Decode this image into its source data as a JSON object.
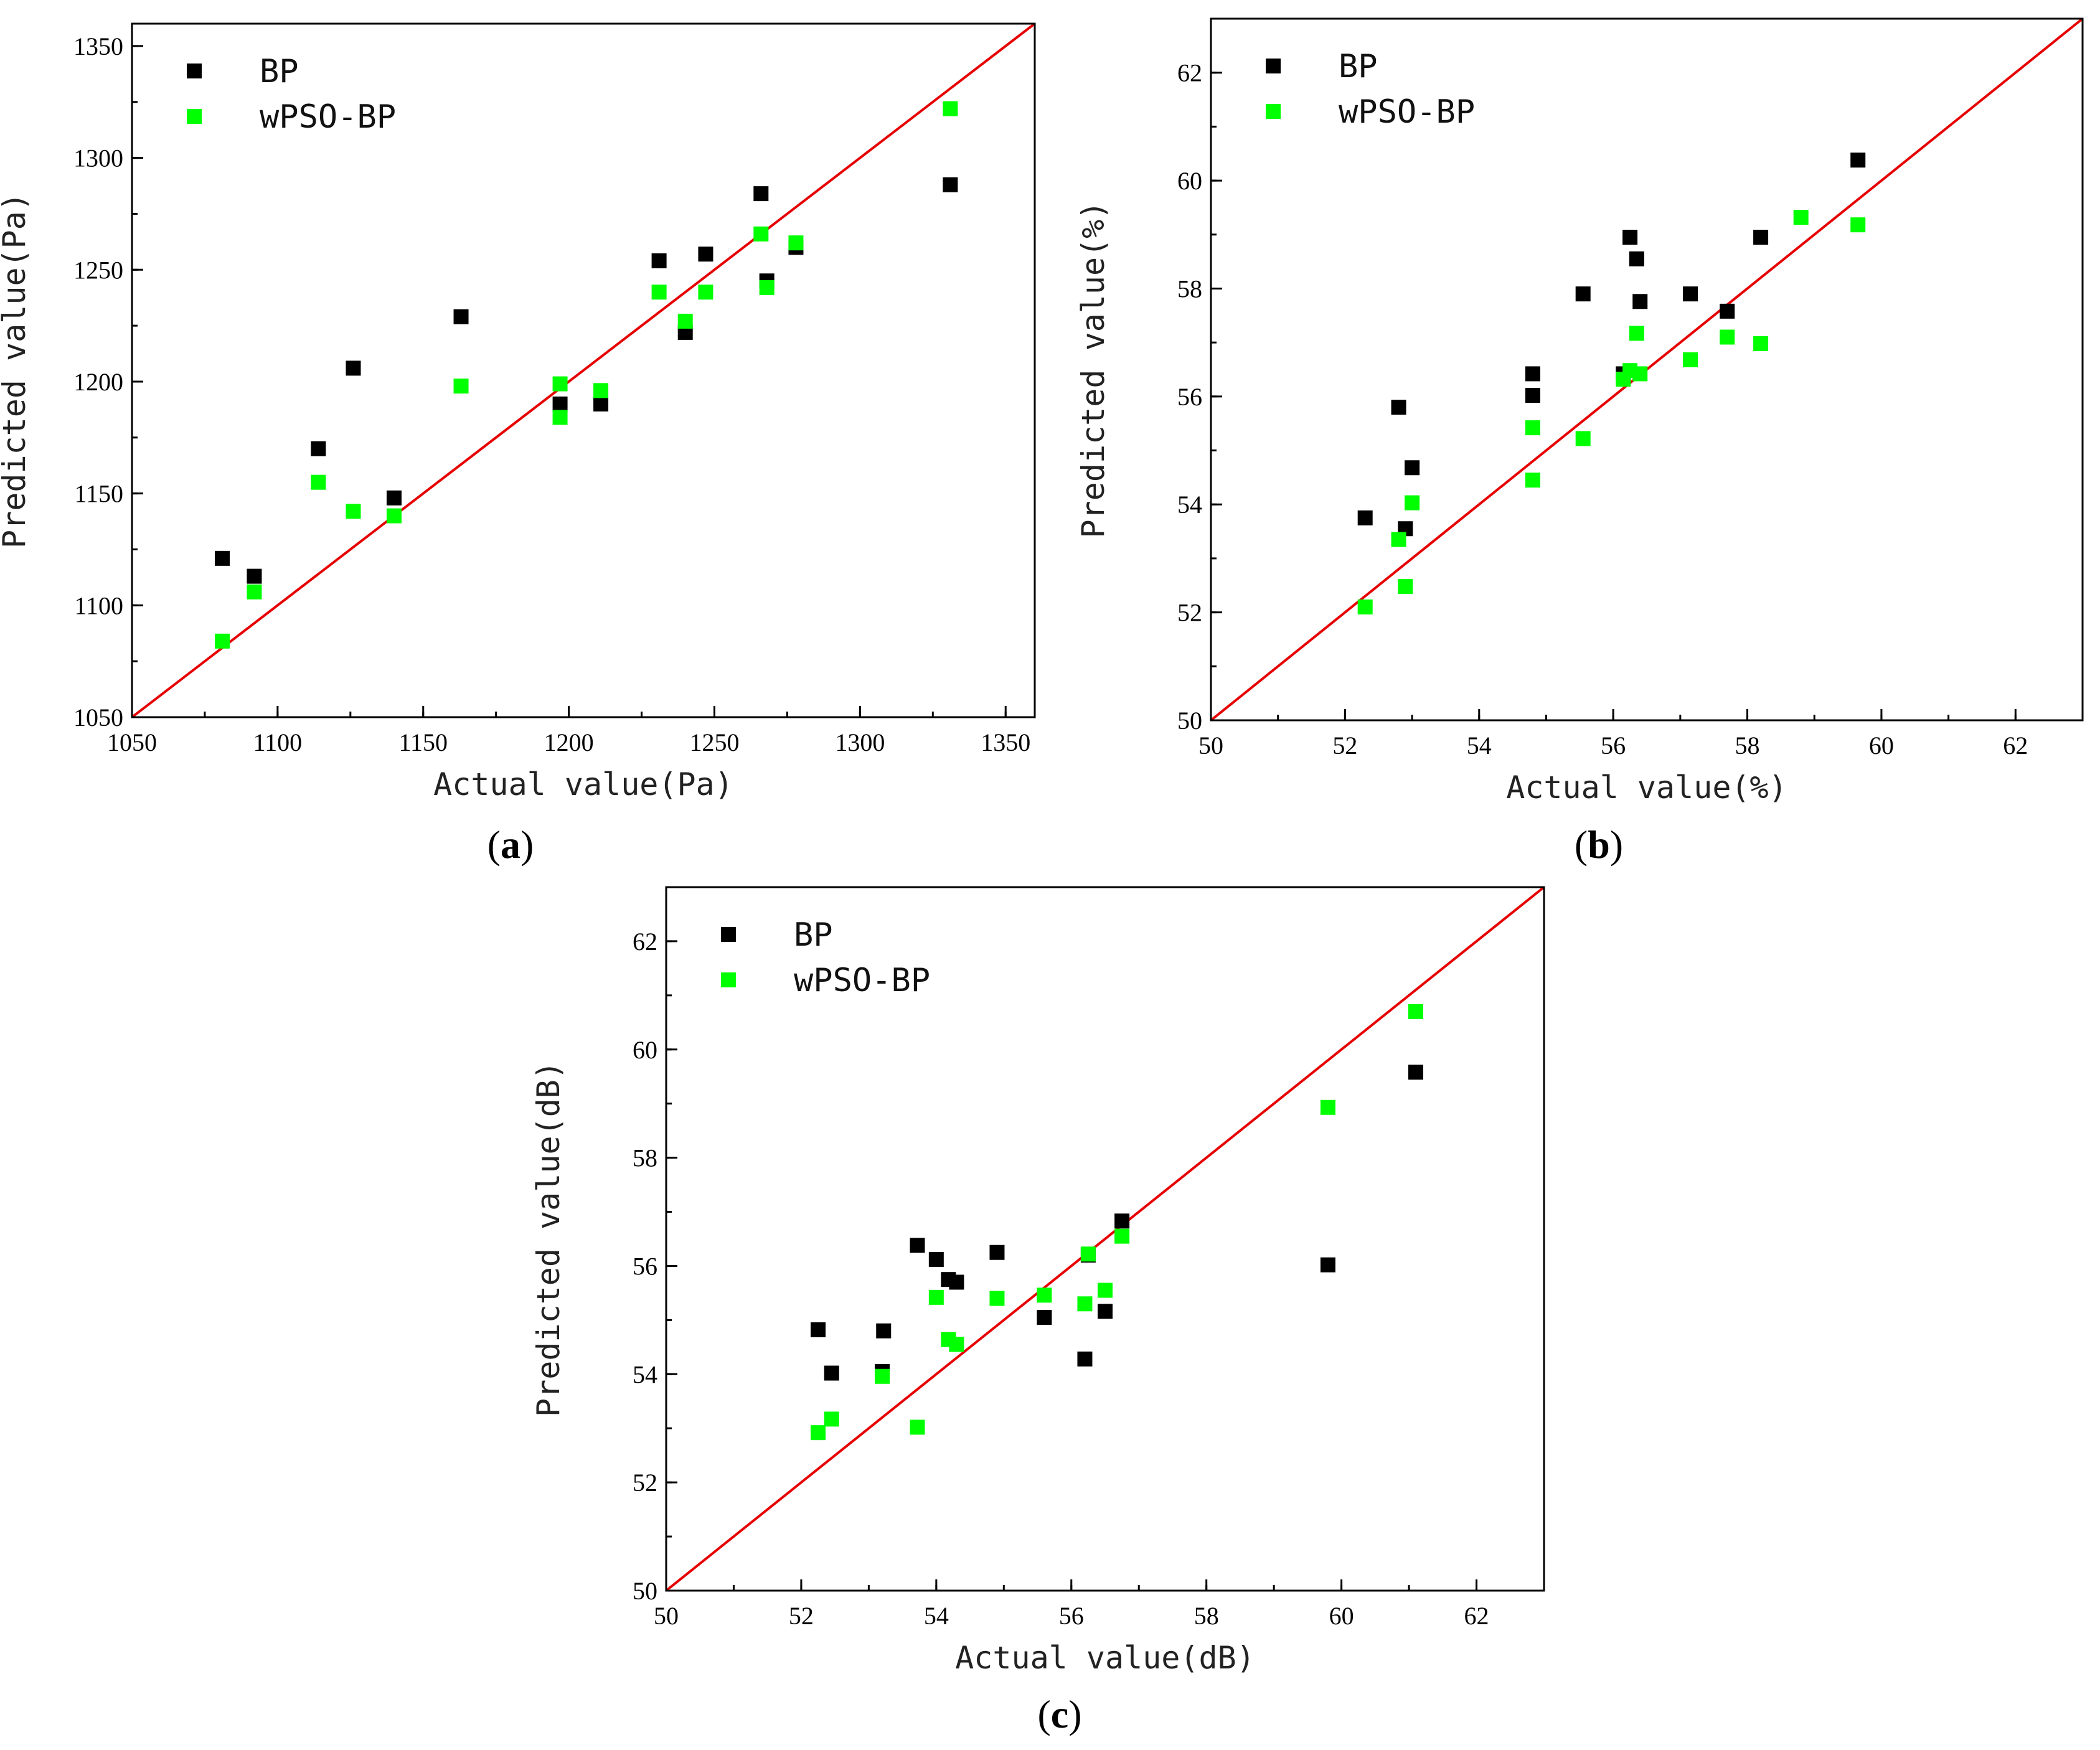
{
  "figure": {
    "colors": {
      "series_bp": "#000000",
      "series_wpso": "#00ff00",
      "reference_line": "#e60000",
      "frame": "#000000"
    }
  },
  "chart_data": [
    {
      "panel": "a",
      "label": "a",
      "type": "scatter",
      "xlabel": "Actual value(Pa)",
      "ylabel": "Predicted value(Pa)",
      "xlim": [
        1050,
        1360
      ],
      "ylim": [
        1050,
        1360
      ],
      "xticks": [
        1050,
        1100,
        1150,
        1200,
        1250,
        1300,
        1350
      ],
      "yticks": [
        1050,
        1100,
        1150,
        1200,
        1250,
        1300,
        1350
      ],
      "minor_step": 25,
      "reference_line": "y = x",
      "legend_position": "top-left",
      "series": [
        {
          "name": "BP",
          "points": [
            [
              1081,
              1121
            ],
            [
              1092,
              1113
            ],
            [
              1114,
              1170
            ],
            [
              1126,
              1206
            ],
            [
              1140,
              1148
            ],
            [
              1163,
              1229
            ],
            [
              1197,
              1190
            ],
            [
              1211,
              1190
            ],
            [
              1231,
              1254
            ],
            [
              1240,
              1222
            ],
            [
              1247,
              1257
            ],
            [
              1266,
              1284
            ],
            [
              1268,
              1245
            ],
            [
              1278,
              1260
            ],
            [
              1331,
              1288
            ]
          ]
        },
        {
          "name": "wPSO-BP",
          "points": [
            [
              1081,
              1084
            ],
            [
              1092,
              1106
            ],
            [
              1114,
              1155
            ],
            [
              1126,
              1142
            ],
            [
              1140,
              1140
            ],
            [
              1163,
              1198
            ],
            [
              1197,
              1184
            ],
            [
              1197,
              1199
            ],
            [
              1211,
              1196
            ],
            [
              1231,
              1240
            ],
            [
              1240,
              1227
            ],
            [
              1247,
              1240
            ],
            [
              1266,
              1266
            ],
            [
              1268,
              1242
            ],
            [
              1278,
              1262
            ],
            [
              1331,
              1322
            ]
          ]
        }
      ]
    },
    {
      "panel": "b",
      "label": "b",
      "type": "scatter",
      "xlabel": "Actual value(%)",
      "ylabel": "Predicted value(%)",
      "xlim": [
        50,
        63
      ],
      "ylim": [
        50,
        63
      ],
      "xticks": [
        50,
        52,
        54,
        56,
        58,
        60,
        62
      ],
      "yticks": [
        50,
        52,
        54,
        56,
        58,
        60,
        62
      ],
      "minor_step": 1,
      "reference_line": "y = x",
      "legend_position": "top-left",
      "series": [
        {
          "name": "BP",
          "points": [
            [
              52.3,
              53.75
            ],
            [
              52.8,
              55.8
            ],
            [
              52.9,
              53.55
            ],
            [
              53.0,
              54.68
            ],
            [
              54.8,
              56.02
            ],
            [
              54.8,
              56.42
            ],
            [
              55.55,
              57.9
            ],
            [
              56.15,
              56.42
            ],
            [
              56.25,
              58.95
            ],
            [
              56.35,
              58.55
            ],
            [
              56.4,
              57.76
            ],
            [
              57.15,
              57.9
            ],
            [
              57.7,
              57.58
            ],
            [
              58.2,
              58.95
            ],
            [
              59.65,
              60.38
            ]
          ]
        },
        {
          "name": "wPSO-BP",
          "points": [
            [
              52.3,
              52.1
            ],
            [
              52.8,
              53.35
            ],
            [
              52.9,
              52.48
            ],
            [
              53.0,
              54.03
            ],
            [
              54.8,
              54.45
            ],
            [
              54.8,
              55.42
            ],
            [
              55.55,
              55.22
            ],
            [
              56.15,
              56.32
            ],
            [
              56.25,
              56.48
            ],
            [
              56.35,
              57.17
            ],
            [
              56.4,
              56.42
            ],
            [
              57.15,
              56.68
            ],
            [
              57.7,
              57.1
            ],
            [
              58.2,
              56.98
            ],
            [
              58.8,
              59.32
            ],
            [
              59.65,
              59.18
            ]
          ]
        }
      ]
    },
    {
      "panel": "c",
      "label": "c",
      "type": "scatter",
      "xlabel": "Actual value(dB)",
      "ylabel": "Predicted value(dB)",
      "xlim": [
        50,
        63
      ],
      "ylim": [
        50,
        63
      ],
      "xticks": [
        50,
        52,
        54,
        56,
        58,
        60,
        62
      ],
      "yticks": [
        50,
        52,
        54,
        56,
        58,
        60,
        62
      ],
      "minor_step": 1,
      "reference_line": "y = x",
      "legend_position": "top-left",
      "series": [
        {
          "name": "BP",
          "points": [
            [
              52.25,
              54.82
            ],
            [
              52.45,
              54.02
            ],
            [
              53.2,
              54.05
            ],
            [
              53.22,
              54.8
            ],
            [
              53.72,
              56.38
            ],
            [
              54.0,
              56.12
            ],
            [
              54.18,
              55.75
            ],
            [
              54.3,
              55.7
            ],
            [
              54.9,
              56.25
            ],
            [
              55.6,
              55.05
            ],
            [
              56.2,
              54.28
            ],
            [
              56.25,
              56.2
            ],
            [
              56.5,
              55.16
            ],
            [
              56.75,
              56.83
            ],
            [
              59.8,
              56.02
            ],
            [
              61.1,
              59.58
            ]
          ]
        },
        {
          "name": "wPSO-BP",
          "points": [
            [
              52.25,
              52.92
            ],
            [
              52.45,
              53.17
            ],
            [
              53.2,
              53.96
            ],
            [
              53.72,
              53.02
            ],
            [
              54.0,
              55.42
            ],
            [
              54.18,
              54.64
            ],
            [
              54.3,
              54.55
            ],
            [
              54.9,
              55.4
            ],
            [
              55.6,
              55.46
            ],
            [
              56.2,
              55.3
            ],
            [
              56.25,
              56.22
            ],
            [
              56.5,
              55.55
            ],
            [
              56.75,
              56.55
            ],
            [
              59.8,
              58.93
            ],
            [
              61.1,
              60.7
            ]
          ]
        }
      ]
    }
  ]
}
